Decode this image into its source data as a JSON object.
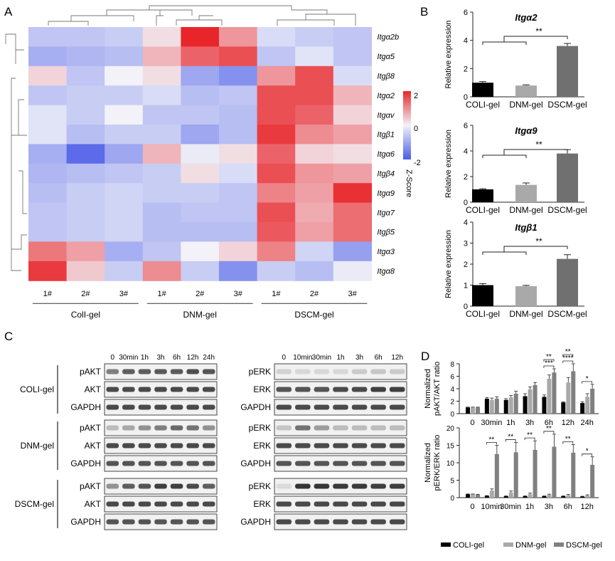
{
  "panels": {
    "a": "A",
    "b": "B",
    "c": "C",
    "d": "D"
  },
  "chart_data": [
    {
      "type": "heatmap",
      "panel": "A",
      "title": "",
      "rows": [
        "Itgα2b",
        "Itgα5",
        "Itgβ8",
        "Itgα2",
        "Itgαv",
        "Itgβ1",
        "Itgα6",
        "Itgβ4",
        "Itgα9",
        "Itgα7",
        "Itgβ5",
        "Itgα3",
        "Itgα8"
      ],
      "columns": [
        "1#",
        "2#",
        "3#",
        "1#",
        "2#",
        "3#",
        "1#",
        "2#",
        "3#"
      ],
      "groups": [
        {
          "name": "ColI-gel",
          "columns": [
            0,
            1,
            2
          ]
        },
        {
          "name": "DNM-gel",
          "columns": [
            3,
            4,
            5
          ]
        },
        {
          "name": "DSCM-gel",
          "columns": [
            6,
            7,
            8
          ]
        }
      ],
      "values": [
        [
          -0.6,
          -0.6,
          -0.5,
          0.2,
          2.0,
          0.9,
          -0.3,
          -0.5,
          -0.6
        ],
        [
          -0.9,
          -0.8,
          -0.7,
          0.6,
          1.4,
          1.6,
          -0.6,
          -0.2,
          -0.6
        ],
        [
          0.3,
          -0.6,
          0.0,
          0.2,
          -1.0,
          -1.3,
          0.9,
          1.6,
          -0.3
        ],
        [
          -0.6,
          -0.5,
          -0.5,
          -0.3,
          -0.7,
          -0.6,
          1.6,
          1.6,
          0.6
        ],
        [
          -0.2,
          -0.5,
          0.0,
          -0.6,
          -0.6,
          -0.7,
          1.6,
          1.4,
          0.3
        ],
        [
          -0.2,
          -0.7,
          -0.5,
          -0.5,
          -1.0,
          -0.7,
          1.8,
          1.0,
          0.8
        ],
        [
          -0.9,
          -1.8,
          -1.0,
          0.6,
          -0.1,
          0.2,
          1.4,
          0.3,
          0.2
        ],
        [
          -0.8,
          -0.7,
          -0.6,
          -0.5,
          0.2,
          -0.3,
          1.6,
          0.9,
          0.8
        ],
        [
          -0.7,
          -0.5,
          -0.4,
          -0.5,
          -0.5,
          -0.6,
          1.1,
          0.8,
          1.9
        ],
        [
          -0.6,
          -0.5,
          -0.4,
          -0.7,
          -0.6,
          -0.6,
          1.6,
          0.7,
          1.3
        ],
        [
          -0.6,
          -0.5,
          -0.4,
          -0.7,
          -0.7,
          -0.7,
          1.5,
          0.8,
          1.3
        ],
        [
          1.2,
          0.8,
          -0.9,
          -0.6,
          0.0,
          0.3,
          1.1,
          -0.4,
          -1.1
        ],
        [
          1.8,
          0.4,
          -0.5,
          1.0,
          -0.5,
          -1.3,
          -0.5,
          -0.7,
          -0.1
        ]
      ],
      "colorbar": {
        "label": "Z-Score",
        "ticks": [
          "2",
          "0",
          "-2"
        ],
        "range": [
          -2,
          2
        ],
        "low_color": "#4a5ce8",
        "mid_color": "#f2f2f8",
        "high_color": "#e8262a"
      }
    },
    {
      "type": "bar",
      "panel": "B",
      "charts": [
        {
          "title": "Itgα2",
          "ylabel": "Relative expression",
          "ylim": [
            0,
            6
          ],
          "yticks": [
            "0",
            "2",
            "4",
            "6"
          ],
          "categories": [
            "COLI-gel",
            "DNM-gel",
            "DSCM-gel"
          ],
          "values": [
            1.0,
            0.8,
            3.6
          ],
          "errors": [
            0.08,
            0.05,
            0.18
          ],
          "colors": [
            "#000000",
            "#a9a9a9",
            "#707070"
          ],
          "significance": "**"
        },
        {
          "title": "Itgα9",
          "ylabel": "Relative expression",
          "ylim": [
            0,
            6
          ],
          "yticks": [
            "0",
            "2",
            "4",
            "6"
          ],
          "categories": [
            "COLI-gel",
            "DNM-gel",
            "DSCM-gel"
          ],
          "values": [
            1.0,
            1.35,
            3.8
          ],
          "errors": [
            0.05,
            0.15,
            0.3
          ],
          "colors": [
            "#000000",
            "#a9a9a9",
            "#707070"
          ],
          "significance": "**"
        },
        {
          "title": "Itgβ1",
          "ylabel": "Relative expression",
          "ylim": [
            0,
            4
          ],
          "yticks": [
            "0",
            "1",
            "2",
            "3",
            "4"
          ],
          "categories": [
            "COLI-gel",
            "DNM-gel",
            "DSCM-gel"
          ],
          "values": [
            1.0,
            0.95,
            2.25
          ],
          "errors": [
            0.07,
            0.04,
            0.2
          ],
          "colors": [
            "#000000",
            "#a9a9a9",
            "#707070"
          ],
          "significance": "**"
        }
      ]
    },
    {
      "type": "bar",
      "panel": "D",
      "legend": [
        "COLI-gel",
        "DNM-gel",
        "DSCM-gel"
      ],
      "legend_position": "bottom",
      "series_colors": [
        "#000000",
        "#a9a9a9",
        "#808080"
      ],
      "charts": [
        {
          "ylabel": [
            "Normalized",
            "pAKT/AKT ratio"
          ],
          "ylim": [
            0,
            8
          ],
          "yticks": [
            "0",
            "2",
            "4",
            "6",
            "8"
          ],
          "categories": [
            "0",
            "30min",
            "1h",
            "3h",
            "6h",
            "12h",
            "24h"
          ],
          "series": [
            {
              "name": "COLI-gel",
              "values": [
                1.0,
                2.4,
                2.2,
                2.8,
                2.7,
                1.8,
                1.7
              ],
              "errors": [
                0.05,
                0.2,
                0.2,
                0.4,
                0.3,
                0.1,
                0.2
              ]
            },
            {
              "name": "DNM-gel",
              "values": [
                1.0,
                2.2,
                2.6,
                3.9,
                5.6,
                5.0,
                2.7
              ],
              "errors": [
                0.05,
                0.3,
                0.3,
                0.4,
                0.6,
                0.8,
                0.5
              ]
            },
            {
              "name": "DSCM-gel",
              "values": [
                1.0,
                2.4,
                3.2,
                4.6,
                6.6,
                6.8,
                4.0
              ],
              "errors": [
                0.05,
                0.3,
                0.4,
                0.4,
                0.6,
                1.2,
                0.7
              ]
            }
          ],
          "annotations": [
            {
              "at": "6h",
              "labels": [
                "***",
                "**"
              ]
            },
            {
              "at": "12h",
              "labels": [
                "****",
                "**"
              ]
            },
            {
              "at": "24h",
              "labels": [
                "*"
              ]
            }
          ]
        },
        {
          "ylabel": [
            "Normalized",
            "pERK/ERK ratio"
          ],
          "ylim": [
            0,
            20
          ],
          "yticks": [
            "0",
            "5",
            "10",
            "15",
            "20"
          ],
          "categories": [
            "0",
            "10min",
            "30min",
            "1h",
            "3h",
            "6h",
            "12h"
          ],
          "series": [
            {
              "name": "COLI-gel",
              "values": [
                1.0,
                0.5,
                0.4,
                0.4,
                0.4,
                0.4,
                0.3
              ],
              "errors": [
                0.05,
                0.1,
                0.1,
                0.1,
                0.1,
                0.1,
                0.1
              ]
            },
            {
              "name": "DNM-gel",
              "values": [
                1.0,
                2.0,
                1.5,
                1.0,
                0.8,
                0.7,
                0.6
              ],
              "errors": [
                0.05,
                0.5,
                0.4,
                0.3,
                0.2,
                0.2,
                0.2
              ]
            },
            {
              "name": "DSCM-gel",
              "values": [
                0.9,
                12.5,
                13.0,
                13.7,
                14.6,
                12.9,
                9.4
              ],
              "errors": [
                0.05,
                2.5,
                2.8,
                2.6,
                3.6,
                2.3,
                2.3
              ]
            }
          ],
          "annotations": [
            {
              "at": "10min",
              "labels": [
                "**"
              ]
            },
            {
              "at": "30min",
              "labels": [
                "**"
              ]
            },
            {
              "at": "1h",
              "labels": [
                "**"
              ]
            },
            {
              "at": "3h",
              "labels": [
                "**"
              ]
            },
            {
              "at": "6h",
              "labels": [
                "**"
              ]
            },
            {
              "at": "12h",
              "labels": [
                "*"
              ]
            }
          ]
        }
      ]
    }
  ],
  "blots": {
    "akt_times": [
      "0",
      "30min",
      "1h",
      "3h",
      "6h",
      "12h",
      "24h"
    ],
    "erk_times": [
      "0",
      "10min",
      "30min",
      "1h",
      "3h",
      "6h",
      "12h"
    ],
    "groups": [
      {
        "name": "COLI-gel",
        "left": [
          "pAKT",
          "AKT",
          "GAPDH"
        ],
        "right": [
          "pERK",
          "ERK",
          "GAPDH"
        ],
        "intensity": {
          "pAKT": [
            0.55,
            0.7,
            0.7,
            0.72,
            0.72,
            0.78,
            0.75
          ],
          "AKT": [
            0.8,
            0.8,
            0.8,
            0.8,
            0.8,
            0.8,
            0.8
          ],
          "GAPDH": [
            0.8,
            0.8,
            0.8,
            0.8,
            0.8,
            0.8,
            0.8
          ],
          "pERK": [
            0.15,
            0.12,
            0.12,
            0.12,
            0.18,
            0.2,
            0.18
          ],
          "ERK": [
            0.75,
            0.75,
            0.75,
            0.8,
            0.8,
            0.85,
            0.85
          ],
          "GAPDH2": [
            0.8,
            0.8,
            0.8,
            0.8,
            0.8,
            0.8,
            0.8
          ]
        }
      },
      {
        "name": "DNM-gel",
        "left": [
          "pAKT",
          "AKT",
          "GAPDH"
        ],
        "right": [
          "pERK",
          "ERK",
          "GAPDH"
        ],
        "intensity": {
          "pAKT": [
            0.25,
            0.35,
            0.45,
            0.55,
            0.65,
            0.6,
            0.45
          ],
          "AKT": [
            0.8,
            0.8,
            0.8,
            0.8,
            0.8,
            0.8,
            0.8
          ],
          "GAPDH": [
            0.75,
            0.75,
            0.75,
            0.75,
            0.75,
            0.75,
            0.75
          ],
          "pERK": [
            0.2,
            0.6,
            0.4,
            0.25,
            0.25,
            0.25,
            0.25
          ],
          "ERK": [
            0.8,
            0.8,
            0.8,
            0.8,
            0.8,
            0.8,
            0.8
          ],
          "GAPDH2": [
            0.75,
            0.75,
            0.75,
            0.75,
            0.75,
            0.75,
            0.75
          ]
        }
      },
      {
        "name": "DSCM-gel",
        "left": [
          "pAKT",
          "AKT",
          "GAPDH"
        ],
        "right": [
          "pERK",
          "ERK",
          "GAPDH"
        ],
        "intensity": {
          "pAKT": [
            0.45,
            0.7,
            0.75,
            0.85,
            0.85,
            0.8,
            0.7
          ],
          "AKT": [
            0.8,
            0.8,
            0.8,
            0.8,
            0.8,
            0.8,
            0.8
          ],
          "GAPDH": [
            0.75,
            0.75,
            0.75,
            0.75,
            0.75,
            0.75,
            0.75
          ],
          "pERK": [
            0.1,
            0.9,
            0.9,
            0.88,
            0.88,
            0.85,
            0.85
          ],
          "ERK": [
            0.8,
            0.8,
            0.8,
            0.8,
            0.8,
            0.8,
            0.8
          ],
          "GAPDH2": [
            0.8,
            0.8,
            0.8,
            0.8,
            0.8,
            0.8,
            0.8
          ]
        }
      }
    ]
  }
}
